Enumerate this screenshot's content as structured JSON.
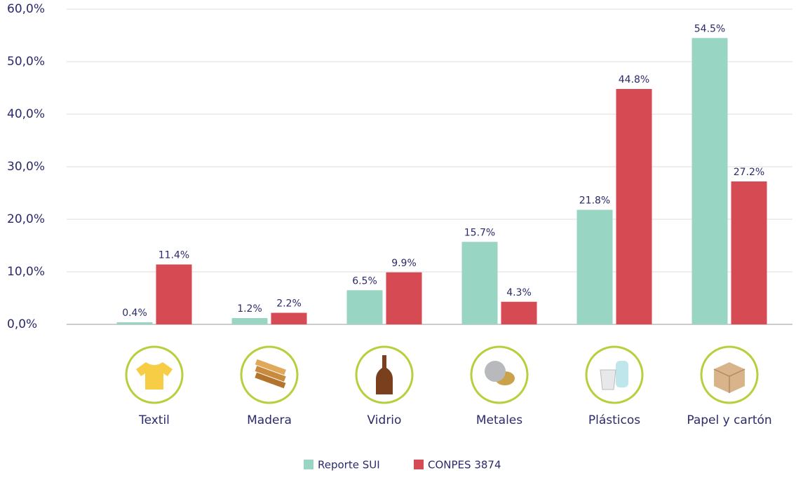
{
  "chart_data": {
    "type": "bar",
    "categories": [
      "Textil",
      "Madera",
      "Vidrio",
      "Metales",
      "Plásticos",
      "Papel y cartón"
    ],
    "series": [
      {
        "name": "Reporte SUI",
        "color": "#98d6c3",
        "values": [
          0.4,
          1.2,
          6.5,
          15.7,
          21.8,
          54.5
        ],
        "value_labels": [
          "0.4%",
          "1.2%",
          "6.5%",
          "15.7%",
          "21.8%",
          "54.5%"
        ]
      },
      {
        "name": "CONPES 3874",
        "color": "#d64a53",
        "values": [
          11.4,
          2.2,
          9.9,
          4.3,
          44.8,
          27.2
        ],
        "value_labels": [
          "11.4%",
          "2.2%",
          "9.9%",
          "4.3%",
          "44.8%",
          "27.2%"
        ]
      }
    ],
    "ylim": [
      0,
      60
    ],
    "yticks": [
      {
        "value": 0,
        "label": "0,0%"
      },
      {
        "value": 10,
        "label": "10,0%"
      },
      {
        "value": 20,
        "label": "20,0%"
      },
      {
        "value": 30,
        "label": "30,0%"
      },
      {
        "value": 40,
        "label": "40,0%"
      },
      {
        "value": 50,
        "label": "50,0%"
      },
      {
        "value": 60,
        "label": "60,0%"
      }
    ],
    "grid": true
  }
}
